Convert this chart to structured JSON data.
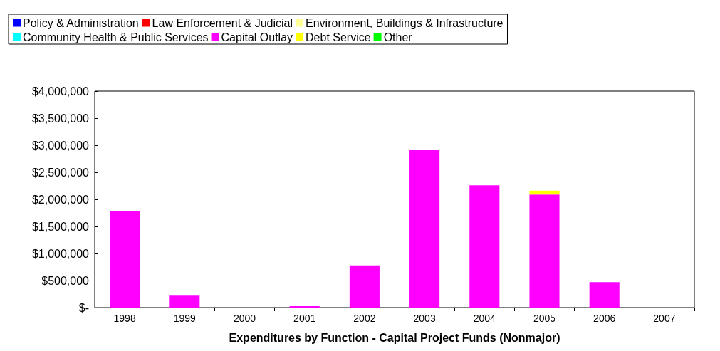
{
  "chart_data": {
    "type": "bar",
    "stacked": true,
    "xlabel": "Expenditures by Function - Capital Project Funds (Nonmajor)",
    "categories": [
      "1998",
      "1999",
      "2000",
      "2001",
      "2002",
      "2003",
      "2004",
      "2005",
      "2006",
      "2007"
    ],
    "series": [
      {
        "name": "Policy & Administration",
        "color": "#0000ff",
        "values": [
          0,
          0,
          0,
          0,
          0,
          0,
          0,
          0,
          0,
          0
        ]
      },
      {
        "name": "Law Enforcement & Judicial",
        "color": "#ff0000",
        "values": [
          0,
          0,
          0,
          0,
          0,
          0,
          0,
          0,
          0,
          0
        ]
      },
      {
        "name": "Environment, Buildings & Infrastructure",
        "color": "#ffff99",
        "values": [
          0,
          0,
          0,
          0,
          0,
          0,
          0,
          0,
          0,
          0
        ]
      },
      {
        "name": "Community Health & Public Services",
        "color": "#00ffff",
        "values": [
          0,
          0,
          0,
          0,
          0,
          0,
          0,
          0,
          0,
          0
        ]
      },
      {
        "name": "Capital Outlay",
        "color": "#ff00ff",
        "values": [
          1790000,
          220000,
          0,
          25000,
          780000,
          2910000,
          2260000,
          2090000,
          470000,
          0
        ]
      },
      {
        "name": "Debt Service",
        "color": "#ffff00",
        "values": [
          0,
          0,
          0,
          0,
          0,
          0,
          0,
          70000,
          0,
          0
        ]
      },
      {
        "name": "Other",
        "color": "#00ff00",
        "values": [
          0,
          0,
          0,
          0,
          0,
          0,
          0,
          0,
          0,
          0
        ]
      }
    ],
    "ylim": [
      0,
      4000000
    ],
    "yticks": [
      {
        "value": 0,
        "label": "$-"
      },
      {
        "value": 500000,
        "label": "$500,000"
      },
      {
        "value": 1000000,
        "label": "$1,000,000"
      },
      {
        "value": 1500000,
        "label": "$1,500,000"
      },
      {
        "value": 2000000,
        "label": "$2,000,000"
      },
      {
        "value": 2500000,
        "label": "$2,500,000"
      },
      {
        "value": 3000000,
        "label": "$3,000,000"
      },
      {
        "value": 3500000,
        "label": "$3,500,000"
      },
      {
        "value": 4000000,
        "label": "$4,000,000"
      }
    ],
    "grid": false,
    "legend": "top left"
  }
}
